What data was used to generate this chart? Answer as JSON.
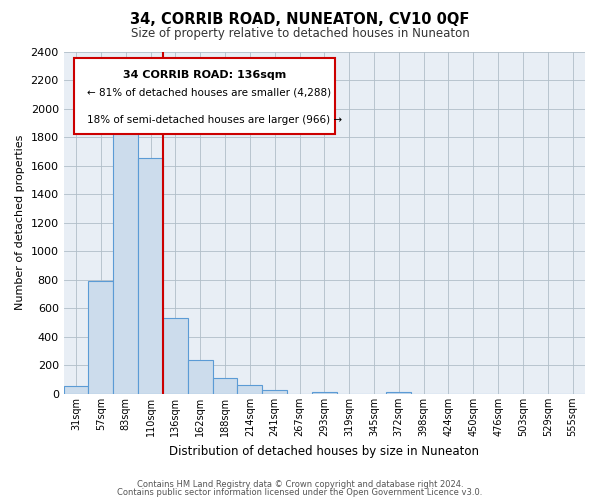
{
  "title": "34, CORRIB ROAD, NUNEATON, CV10 0QF",
  "subtitle": "Size of property relative to detached houses in Nuneaton",
  "xlabel": "Distribution of detached houses by size in Nuneaton",
  "ylabel": "Number of detached properties",
  "bar_labels": [
    "31sqm",
    "57sqm",
    "83sqm",
    "110sqm",
    "136sqm",
    "162sqm",
    "188sqm",
    "214sqm",
    "241sqm",
    "267sqm",
    "293sqm",
    "319sqm",
    "345sqm",
    "372sqm",
    "398sqm",
    "424sqm",
    "450sqm",
    "476sqm",
    "503sqm",
    "529sqm",
    "555sqm"
  ],
  "bar_values": [
    55,
    790,
    1860,
    1650,
    530,
    235,
    110,
    60,
    30,
    0,
    15,
    0,
    0,
    10,
    0,
    0,
    0,
    0,
    0,
    0,
    0
  ],
  "bar_color": "#ccdcec",
  "bar_edge_color": "#5b9bd5",
  "vline_color": "#cc0000",
  "ylim": [
    0,
    2400
  ],
  "yticks": [
    0,
    200,
    400,
    600,
    800,
    1000,
    1200,
    1400,
    1600,
    1800,
    2000,
    2200,
    2400
  ],
  "annotation_title": "34 CORRIB ROAD: 136sqm",
  "annotation_line1": "← 81% of detached houses are smaller (4,288)",
  "annotation_line2": "18% of semi-detached houses are larger (966) →",
  "annotation_box_color": "#ffffff",
  "annotation_box_edge": "#cc0000",
  "footer1": "Contains HM Land Registry data © Crown copyright and database right 2024.",
  "footer2": "Contains public sector information licensed under the Open Government Licence v3.0.",
  "bg_color": "#e8eef5"
}
